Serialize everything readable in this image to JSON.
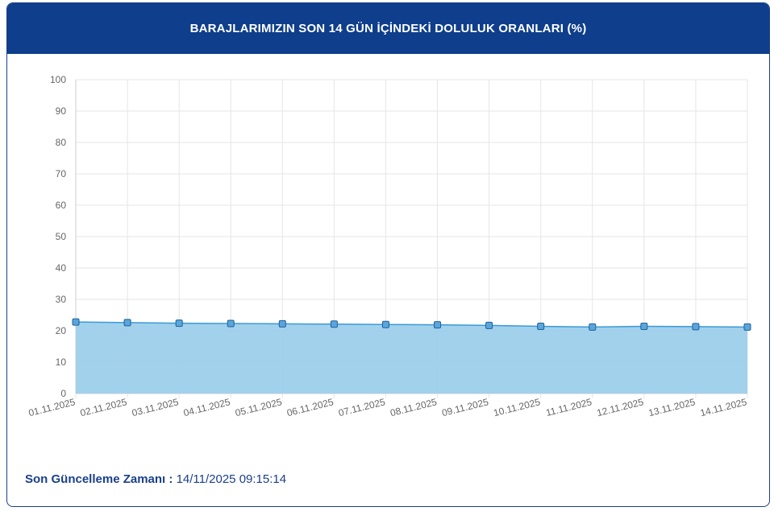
{
  "header": {
    "title": "BARAJLARIMIZIN SON 14 GÜN İÇİNDEKİ DOLULUK ORANLARI (%)"
  },
  "footer": {
    "label": "Son Güncelleme Zamanı :",
    "value": "14/11/2025 09:15:14"
  },
  "chart_data": {
    "type": "area",
    "categories": [
      "01.11.2025",
      "02.11.2025",
      "03.11.2025",
      "04.11.2025",
      "05.11.2025",
      "06.11.2025",
      "07.11.2025",
      "08.11.2025",
      "09.11.2025",
      "10.11.2025",
      "11.11.2025",
      "12.11.2025",
      "13.11.2025",
      "14.11.2025"
    ],
    "values": [
      22.8,
      22.6,
      22.4,
      22.3,
      22.2,
      22.1,
      22.0,
      21.9,
      21.7,
      21.4,
      21.2,
      21.4,
      21.3,
      21.2
    ],
    "title": "BARAJLARIMIZIN SON 14 GÜN İÇİNDEKİ DOLULUK ORANLARI (%)",
    "xlabel": "",
    "ylabel": "",
    "ylim": [
      0,
      100
    ],
    "yticks": [
      0,
      10,
      20,
      30,
      40,
      50,
      60,
      70,
      80,
      90,
      100
    ],
    "grid": true,
    "legend": "none",
    "colors": {
      "fill": "#9dcfeb",
      "line": "#3a9ad9",
      "marker": "#5aa6dc",
      "marker_stroke": "#1f5f9a",
      "grid": "#e6e6e6",
      "axis": "#cfcfcf",
      "tick_text": "#666666"
    }
  }
}
